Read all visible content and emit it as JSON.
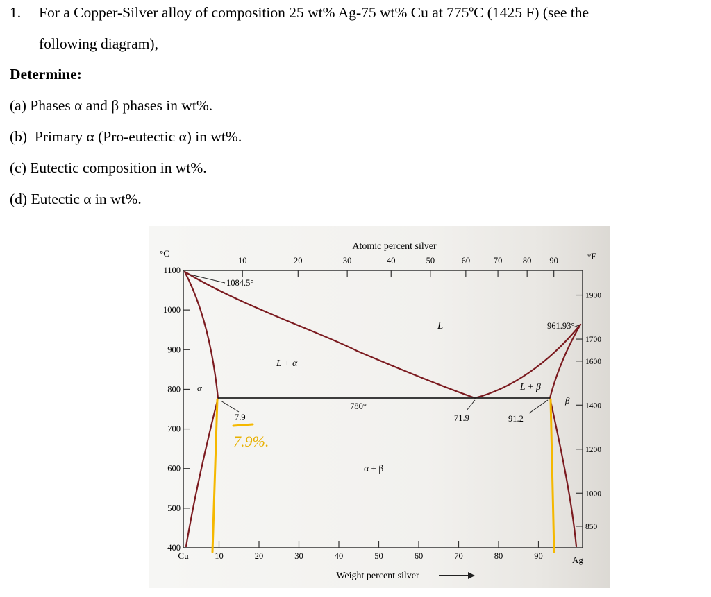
{
  "problem": {
    "number": "1.",
    "line1": "For a Copper-Silver alloy of composition 25 wt% Ag-75 wt% Cu at 775ºC (1425 F) (see the",
    "line2": "following diagram),",
    "determine": "Determine:",
    "items": [
      {
        "label": "(a)",
        "text": "Phases α and β phases in wt%."
      },
      {
        "label": "(b)",
        "text": "Primary α (Pro-eutectic α) in wt%."
      },
      {
        "label": "(c)",
        "text": "Eutectic composition in wt%."
      },
      {
        "label": "(d)",
        "text": "Eutectic α in wt%."
      }
    ]
  },
  "diagram": {
    "top_axis_title": "Atomic percent silver",
    "bottom_axis_title": "Weight percent silver",
    "celsius_unit": "°C",
    "fahrenheit_unit": "°F",
    "left_ticks": [
      "1100",
      "1000",
      "900",
      "800",
      "700",
      "600",
      "500",
      "400"
    ],
    "left_tick_values_c": [
      1100,
      1000,
      900,
      800,
      700,
      600,
      500,
      400
    ],
    "right_ticks": [
      "1900",
      "1700",
      "1600",
      "1400",
      "1200",
      "1000",
      "850"
    ],
    "right_tick_values_f": [
      1900,
      1700,
      1600,
      1400,
      1200,
      1000,
      850
    ],
    "bottom_ticks": [
      "10",
      "20",
      "30",
      "40",
      "50",
      "60",
      "70",
      "80",
      "90"
    ],
    "bottom_tick_values": [
      10,
      20,
      30,
      40,
      50,
      60,
      70,
      80,
      90
    ],
    "bottom_ends": {
      "left": "Cu",
      "right": "Ag"
    },
    "top_ticks": [
      "10",
      "20",
      "30",
      "40",
      "50",
      "60",
      "70",
      "80",
      "90"
    ],
    "top_tick_values_at": [
      10,
      20,
      30,
      40,
      50,
      60,
      70,
      80,
      90
    ],
    "phase_labels": {
      "liquid": "L",
      "l_alpha": "L + α",
      "l_beta": "L + β",
      "alpha": "α",
      "beta": "β",
      "alpha_beta": "α + β"
    },
    "annotations": {
      "cu_melting": "1084.5°",
      "ag_melting": "961.93°",
      "eutectic_temp": "780°",
      "alpha_limit": "7.9",
      "eutectic_comp": "71.9",
      "beta_limit": "91.2"
    },
    "handwritten_note": "7.9%.",
    "colors": {
      "phase_line": "#7b1a1f",
      "highlight": "#f5b800",
      "note": "#e8b000"
    },
    "key_points_wt_ag": {
      "eutectic_temp_c": 780,
      "alpha_max": 7.9,
      "eutectic": 71.9,
      "beta_max": 91.2,
      "cu_melt_c": 1084.5,
      "ag_melt_c": 961.93
    }
  }
}
